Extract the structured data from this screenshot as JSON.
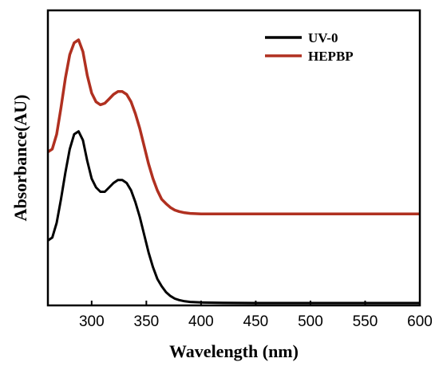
{
  "chart_data": {
    "type": "line",
    "title": "",
    "xlabel": "Wavelength (nm)",
    "ylabel": "Absorbance(AU)",
    "xlim": [
      260,
      600
    ],
    "ylim": [
      0,
      1.0
    ],
    "x_ticks": [
      300,
      350,
      400,
      450,
      500,
      550,
      600
    ],
    "y_ticks_shown": false,
    "grid": false,
    "legend_position": "top-right",
    "series": [
      {
        "name": "UV-0",
        "color": "#000000",
        "x": [
          260,
          264,
          268,
          272,
          276,
          280,
          284,
          288,
          292,
          296,
          300,
          304,
          308,
          312,
          316,
          320,
          324,
          328,
          332,
          336,
          340,
          344,
          348,
          352,
          356,
          360,
          364,
          368,
          372,
          376,
          380,
          385,
          390,
          400,
          420,
          450,
          500,
          550,
          600
        ],
        "y": [
          0.22,
          0.23,
          0.28,
          0.36,
          0.45,
          0.53,
          0.58,
          0.59,
          0.56,
          0.49,
          0.43,
          0.4,
          0.385,
          0.385,
          0.4,
          0.415,
          0.425,
          0.425,
          0.415,
          0.39,
          0.35,
          0.3,
          0.24,
          0.18,
          0.13,
          0.09,
          0.065,
          0.045,
          0.032,
          0.023,
          0.018,
          0.014,
          0.012,
          0.01,
          0.009,
          0.008,
          0.008,
          0.008,
          0.008
        ]
      },
      {
        "name": "HEPBP",
        "color": "#b03020",
        "x": [
          260,
          264,
          268,
          272,
          276,
          280,
          284,
          288,
          292,
          296,
          300,
          304,
          308,
          312,
          316,
          320,
          324,
          328,
          332,
          336,
          340,
          344,
          348,
          352,
          356,
          360,
          364,
          368,
          372,
          376,
          380,
          385,
          390,
          400,
          420,
          450,
          500,
          550,
          600
        ],
        "y": [
          0.52,
          0.53,
          0.58,
          0.67,
          0.77,
          0.85,
          0.89,
          0.9,
          0.86,
          0.78,
          0.72,
          0.69,
          0.68,
          0.685,
          0.7,
          0.715,
          0.725,
          0.725,
          0.715,
          0.69,
          0.65,
          0.6,
          0.54,
          0.48,
          0.43,
          0.39,
          0.36,
          0.345,
          0.332,
          0.323,
          0.318,
          0.314,
          0.312,
          0.31,
          0.31,
          0.31,
          0.31,
          0.31,
          0.31
        ]
      }
    ]
  }
}
